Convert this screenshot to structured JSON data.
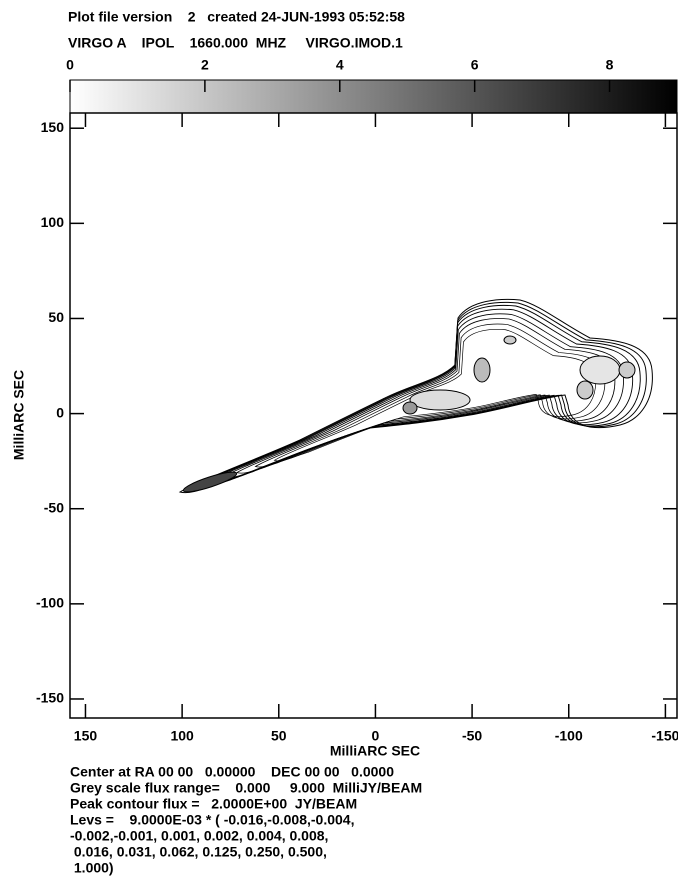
{
  "chart_data": {
    "type": "contour",
    "header": [
      "Plot file version    2   created 24-JUN-1993 05:52:58",
      "VIRGO A    IPOL    1660.000  MHZ     VIRGO.IMOD.1"
    ],
    "x_label": "MilliARC SEC",
    "y_label": "MilliARC SEC",
    "xlim": [
      158,
      -156
    ],
    "xticks": [
      150,
      100,
      50,
      0,
      -50,
      -100,
      -150
    ],
    "ylim": [
      -160,
      158
    ],
    "yticks": [
      150,
      100,
      50,
      0,
      -50,
      -100,
      -150
    ],
    "colorbar": {
      "lim": [
        0,
        9
      ],
      "ticks": [
        0,
        2,
        4,
        6,
        8
      ],
      "colors": [
        "#ffffff",
        "#000000"
      ]
    },
    "footer": [
      "Center at RA 00 00   0.00000    DEC 00 00   0.0000",
      "Grey scale flux range=    0.000     9.000  MilliJY/BEAM",
      "Peak contour flux =   2.0000E+00  JY/BEAM",
      "Levs =    9.0000E-03 * ( -0.016,-0.008,-0.004,",
      "-0.002,-0.001, 0.001, 0.002, 0.004, 0.008,",
      " 0.016, 0.031, 0.062, 0.125, 0.250, 0.500,",
      " 1.000)"
    ]
  }
}
